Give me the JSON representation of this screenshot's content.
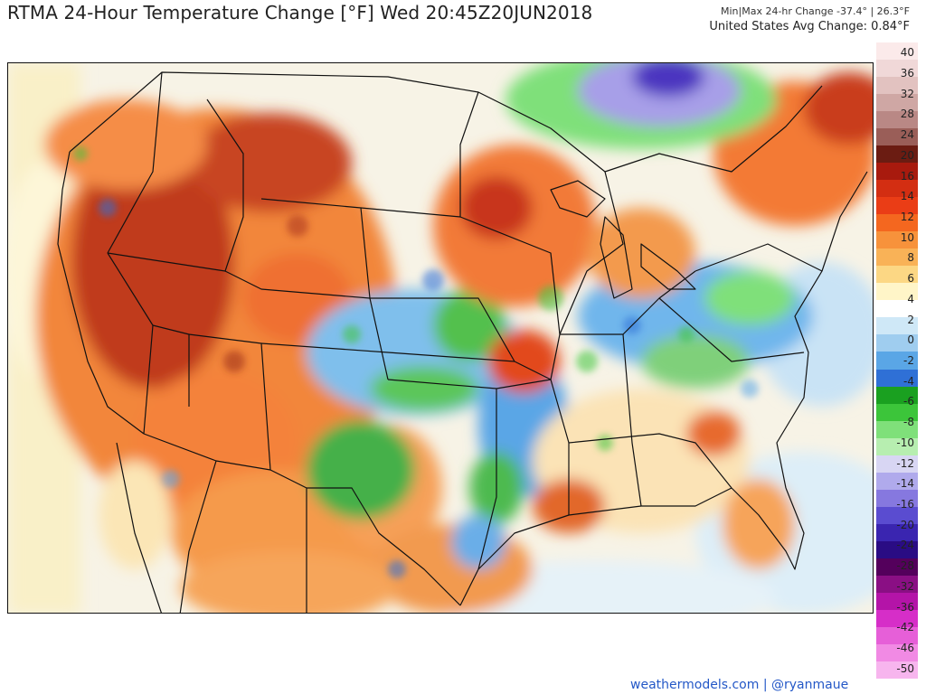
{
  "header": {
    "title": "RTMA 24-Hour Temperature Change [°F]  Wed 20:45Z20JUN2018",
    "minmax": "Min|Max 24-hr Change -37.4°  |  26.3°F",
    "avg": "United States Avg Change: 0.84°F"
  },
  "legend": {
    "labels": [
      "40",
      "36",
      "32",
      "28",
      "24",
      "20",
      "16",
      "14",
      "12",
      "10",
      "8",
      "6",
      "4",
      "2",
      "0",
      "-2",
      "-4",
      "-6",
      "-8",
      "-10",
      "-12",
      "-14",
      "-16",
      "-20",
      "-24",
      "-28",
      "-32",
      "-36",
      "-42",
      "-46",
      "-50"
    ],
    "colors": [
      "#fbeaea",
      "#f0d8d8",
      "#e2c2c0",
      "#cfa7a4",
      "#b98885",
      "#9a5e58",
      "#6b1c12",
      "#a81a0e",
      "#d32e12",
      "#ea3d16",
      "#f4671f",
      "#f7923b",
      "#f9b257",
      "#fcd784",
      "#fff5c8",
      "#ffffff",
      "#cfe8f7",
      "#9fcdef",
      "#5aa6e6",
      "#2f70d6",
      "#1aa020",
      "#3cc53a",
      "#7fe07a",
      "#b7eeb0",
      "#d8d6f3",
      "#b0aaec",
      "#8678df",
      "#5a4cd0",
      "#3a25b0",
      "#2a0c84",
      "#54005c",
      "#8a0f84",
      "#b414a8",
      "#d62ec8",
      "#e65fd8",
      "#f18ae4",
      "#f7b5ee"
    ]
  },
  "map": {
    "regions": [
      {
        "name": "west-warm",
        "color": "#f2863a"
      },
      {
        "name": "great-basin-hot",
        "color": "#b8341c"
      },
      {
        "name": "plains-cool",
        "color": "#5aa6e6"
      },
      {
        "name": "great-lakes-cool",
        "color": "#7fe07a"
      },
      {
        "name": "canada-cold",
        "color": "#5a4cd0"
      }
    ]
  },
  "credit": "weathermodels.com | @ryanmaue"
}
